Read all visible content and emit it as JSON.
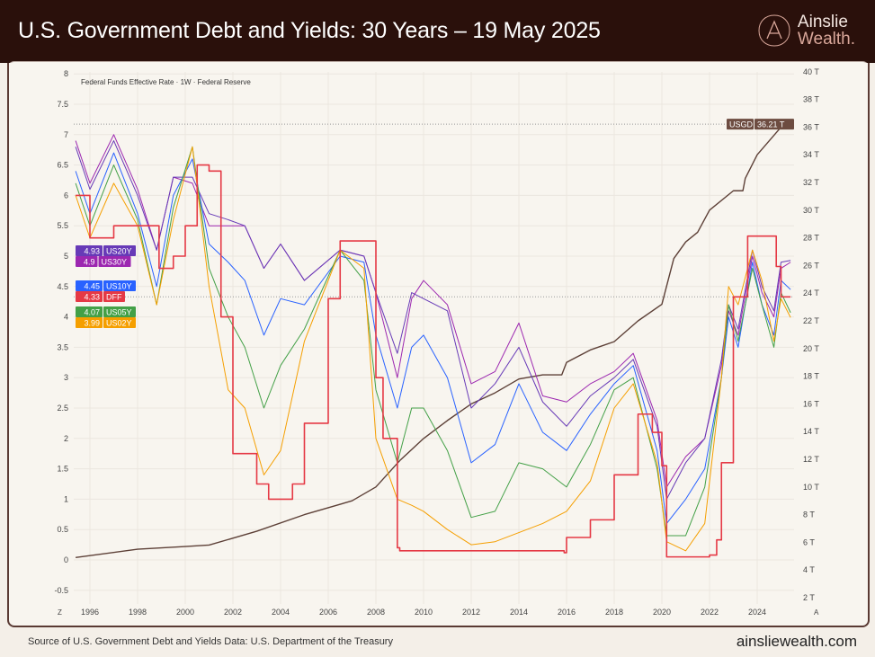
{
  "header": {
    "title": "U.S. Government Debt and Yields: 30 Years – 19 May 2025",
    "logo_line1": "Ainslie",
    "logo_line2": "Wealth."
  },
  "footer": {
    "source": "Source of U.S. Government Debt and Yields Data: U.S. Department of the Treasury",
    "site": "ainsliewealth.com"
  },
  "chart_data": {
    "type": "line",
    "title": "Federal Funds Effective Rate · 1W · Federal Reserve",
    "xlim": [
      1995.3,
      2025.4
    ],
    "x_ticks": [
      "1996",
      "1998",
      "2000",
      "2002",
      "2004",
      "2006",
      "2008",
      "2010",
      "2012",
      "2014",
      "2016",
      "2018",
      "2020",
      "2022",
      "2024"
    ],
    "x_edge_labels": [
      "Z",
      "A"
    ],
    "y_left": {
      "lim": [
        -0.5,
        8
      ],
      "ticks": [
        "-0.5",
        "0",
        "0.5",
        "1",
        "1.5",
        "2",
        "2.5",
        "3",
        "3.5",
        "4",
        "4.5",
        "5",
        "5.5",
        "6",
        "6.5",
        "7",
        "7.5",
        "8"
      ]
    },
    "y_right": {
      "lim": [
        2,
        40
      ],
      "unit": "T",
      "ticks": [
        "2 T",
        "4 T",
        "6 T",
        "8 T",
        "10 T",
        "12 T",
        "14 T",
        "16 T",
        "18 T",
        "20 T",
        "22 T",
        "24 T",
        "26 T",
        "28 T",
        "30 T",
        "32 T",
        "34 T",
        "36 T",
        "38 T",
        "40 T"
      ]
    },
    "grid": true,
    "x": [
      1995.4,
      1996,
      1997,
      1998,
      1998.8,
      1999.5,
      2000.3,
      2001,
      2001.8,
      2002.5,
      2003.3,
      2004,
      2005,
      2006.5,
      2007.5,
      2008,
      2008.9,
      2009.5,
      2010,
      2011,
      2012,
      2013,
      2014,
      2015,
      2016,
      2017,
      2018,
      2018.8,
      2019.8,
      2020.2,
      2021,
      2021.8,
      2022.5,
      2022.8,
      2023.2,
      2023.8,
      2024.2,
      2024.7,
      2025,
      2025.4
    ],
    "series": [
      {
        "name": "US30Y",
        "axis": "left",
        "color": "#9c27b0",
        "last": "4.9",
        "values": [
          6.9,
          6.2,
          7.0,
          6.1,
          5.1,
          6.3,
          6.2,
          5.5,
          5.5,
          5.5,
          4.8,
          5.2,
          4.6,
          5.1,
          5.0,
          4.4,
          3.0,
          4.3,
          4.6,
          4.2,
          2.9,
          3.1,
          3.9,
          2.7,
          2.6,
          2.9,
          3.1,
          3.4,
          2.3,
          1.2,
          1.7,
          2.0,
          3.2,
          4.1,
          3.7,
          5.0,
          4.4,
          4.0,
          4.8,
          4.9
        ]
      },
      {
        "name": "US20Y",
        "axis": "left",
        "color": "#673ab7",
        "last": "4.93",
        "values": [
          6.8,
          6.1,
          6.9,
          6.0,
          5.1,
          6.3,
          6.3,
          5.7,
          5.6,
          5.5,
          4.8,
          5.2,
          4.6,
          5.1,
          5.0,
          4.4,
          3.4,
          4.4,
          4.3,
          4.1,
          2.5,
          2.9,
          3.5,
          2.6,
          2.2,
          2.7,
          3.0,
          3.3,
          2.2,
          1.0,
          1.6,
          2.0,
          3.3,
          4.2,
          3.8,
          5.1,
          4.5,
          4.1,
          4.9,
          4.93
        ]
      },
      {
        "name": "US10Y",
        "axis": "left",
        "color": "#2962ff",
        "last": "4.45",
        "values": [
          6.4,
          5.7,
          6.7,
          5.7,
          4.5,
          6.0,
          6.6,
          5.2,
          4.9,
          4.6,
          3.7,
          4.3,
          4.2,
          5.0,
          4.9,
          3.7,
          2.5,
          3.5,
          3.7,
          3.0,
          1.6,
          1.9,
          2.9,
          2.1,
          1.8,
          2.4,
          2.9,
          3.2,
          1.8,
          0.6,
          1.0,
          1.5,
          3.0,
          4.0,
          3.5,
          4.9,
          4.2,
          3.7,
          4.6,
          4.45
        ]
      },
      {
        "name": "US05Y",
        "axis": "left",
        "color": "#43a047",
        "last": "4.07",
        "values": [
          6.2,
          5.5,
          6.5,
          5.6,
          4.2,
          5.8,
          6.8,
          4.8,
          4.0,
          3.5,
          2.5,
          3.2,
          3.8,
          5.1,
          4.6,
          2.8,
          1.6,
          2.5,
          2.5,
          1.8,
          0.7,
          0.8,
          1.6,
          1.5,
          1.2,
          1.9,
          2.8,
          3.0,
          1.5,
          0.4,
          0.4,
          1.2,
          3.0,
          4.2,
          3.6,
          4.8,
          4.2,
          3.5,
          4.4,
          4.07
        ]
      },
      {
        "name": "US02Y",
        "axis": "left",
        "color": "#f59f00",
        "last": "3.99",
        "values": [
          6.0,
          5.3,
          6.2,
          5.5,
          4.2,
          5.6,
          6.8,
          4.5,
          2.8,
          2.5,
          1.4,
          1.8,
          3.6,
          5.1,
          4.8,
          2.0,
          1.0,
          0.9,
          0.8,
          0.5,
          0.25,
          0.3,
          0.45,
          0.6,
          0.8,
          1.3,
          2.5,
          2.9,
          1.6,
          0.3,
          0.15,
          0.6,
          3.0,
          4.5,
          4.2,
          5.1,
          4.6,
          3.6,
          4.3,
          3.99
        ]
      }
    ],
    "dff": {
      "name": "DFF",
      "axis": "left",
      "color": "#e53945",
      "last": "4.33",
      "x": [
        1995.4,
        1996,
        1997,
        1998,
        1998.9,
        1999.5,
        2000,
        2000.5,
        2001,
        2001.5,
        2002,
        2003,
        2003.5,
        2004.5,
        2005,
        2006,
        2006.5,
        2007.5,
        2008,
        2008.3,
        2008.9,
        2009,
        2012,
        2015.9,
        2016,
        2017,
        2018,
        2019,
        2019.6,
        2020,
        2020.2,
        2022,
        2022.3,
        2022.5,
        2023,
        2023.6,
        2024.7,
        2024.8,
        2025,
        2025.4
      ],
      "values": [
        6.0,
        5.3,
        5.5,
        5.5,
        4.8,
        5.0,
        5.5,
        6.5,
        6.4,
        4.0,
        1.75,
        1.25,
        1.0,
        1.25,
        2.25,
        4.3,
        5.25,
        5.25,
        3.0,
        2.0,
        0.2,
        0.15,
        0.15,
        0.12,
        0.37,
        0.66,
        1.4,
        2.4,
        2.1,
        1.55,
        0.05,
        0.08,
        0.33,
        1.6,
        4.33,
        5.33,
        5.33,
        4.83,
        4.33,
        4.33
      ]
    },
    "debt": {
      "name": "USGD",
      "axis": "right",
      "color": "#5d4037",
      "last": "36.21 T",
      "x": [
        1995.4,
        1998,
        2000,
        2001,
        2003,
        2005,
        2007,
        2008,
        2009,
        2010,
        2011,
        2012,
        2013,
        2014,
        2015,
        2015.8,
        2016,
        2017,
        2018,
        2019,
        2020,
        2020.5,
        2021,
        2021.5,
        2022,
        2023,
        2023.4,
        2023.5,
        2024,
        2025,
        2025.4
      ],
      "values": [
        4.9,
        5.5,
        5.7,
        5.8,
        6.8,
        8.0,
        9.0,
        10.0,
        11.9,
        13.5,
        14.8,
        16.0,
        16.8,
        17.8,
        18.1,
        18.1,
        19.0,
        19.9,
        20.5,
        22.0,
        23.2,
        26.5,
        27.7,
        28.4,
        30.0,
        31.4,
        31.4,
        32.3,
        34.0,
        36.0,
        36.21
      ]
    }
  }
}
